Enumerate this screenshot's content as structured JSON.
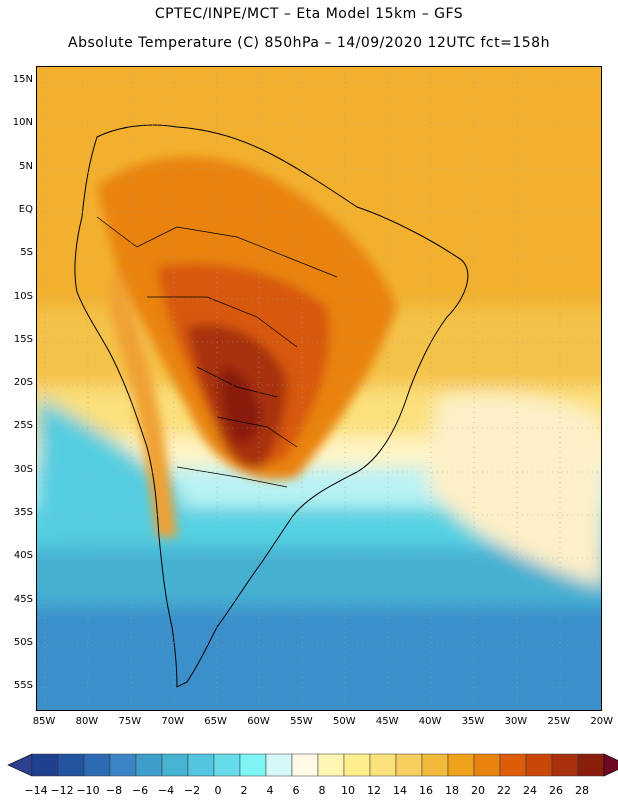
{
  "header": {
    "line1": "CPTEC/INPE/MCT –  Eta Model 15km – GFS",
    "line2": "Absolute Temperature (C) 850hPa – 14/09/2020 12UTC fct=158h"
  },
  "axes": {
    "lat_labels": [
      "15N",
      "10N",
      "5N",
      "EQ",
      "5S",
      "10S",
      "15S",
      "20S",
      "25S",
      "30S",
      "35S",
      "40S",
      "45S",
      "50S",
      "55S"
    ],
    "lon_labels": [
      "85W",
      "80W",
      "75W",
      "70W",
      "65W",
      "60W",
      "55W",
      "50W",
      "45W",
      "40W",
      "35W",
      "30W",
      "25W",
      "20W"
    ]
  },
  "colorbar": {
    "labels": [
      "-14",
      "-12",
      "-10",
      "-8",
      "-6",
      "-4",
      "-2",
      "0",
      "2",
      "4",
      "6",
      "8",
      "10",
      "12",
      "14",
      "16",
      "18",
      "20",
      "22",
      "24",
      "26",
      "28"
    ],
    "colors": [
      "#1f3f8f",
      "#24539f",
      "#2d6bb5",
      "#3a85c5",
      "#3f9ec9",
      "#47b3d2",
      "#52c6de",
      "#66dcea",
      "#7ff4f4",
      "#d4f7f7",
      "#fff9e6",
      "#fff6b3",
      "#ffee8c",
      "#fce27a",
      "#f7cf5e",
      "#f3b93a",
      "#eea21c",
      "#e9830f",
      "#dd5c08",
      "#c94708",
      "#a8310c",
      "#8a1e0c"
    ],
    "low_color": "#2d3f8f",
    "high_color": "#6e0a22"
  }
}
